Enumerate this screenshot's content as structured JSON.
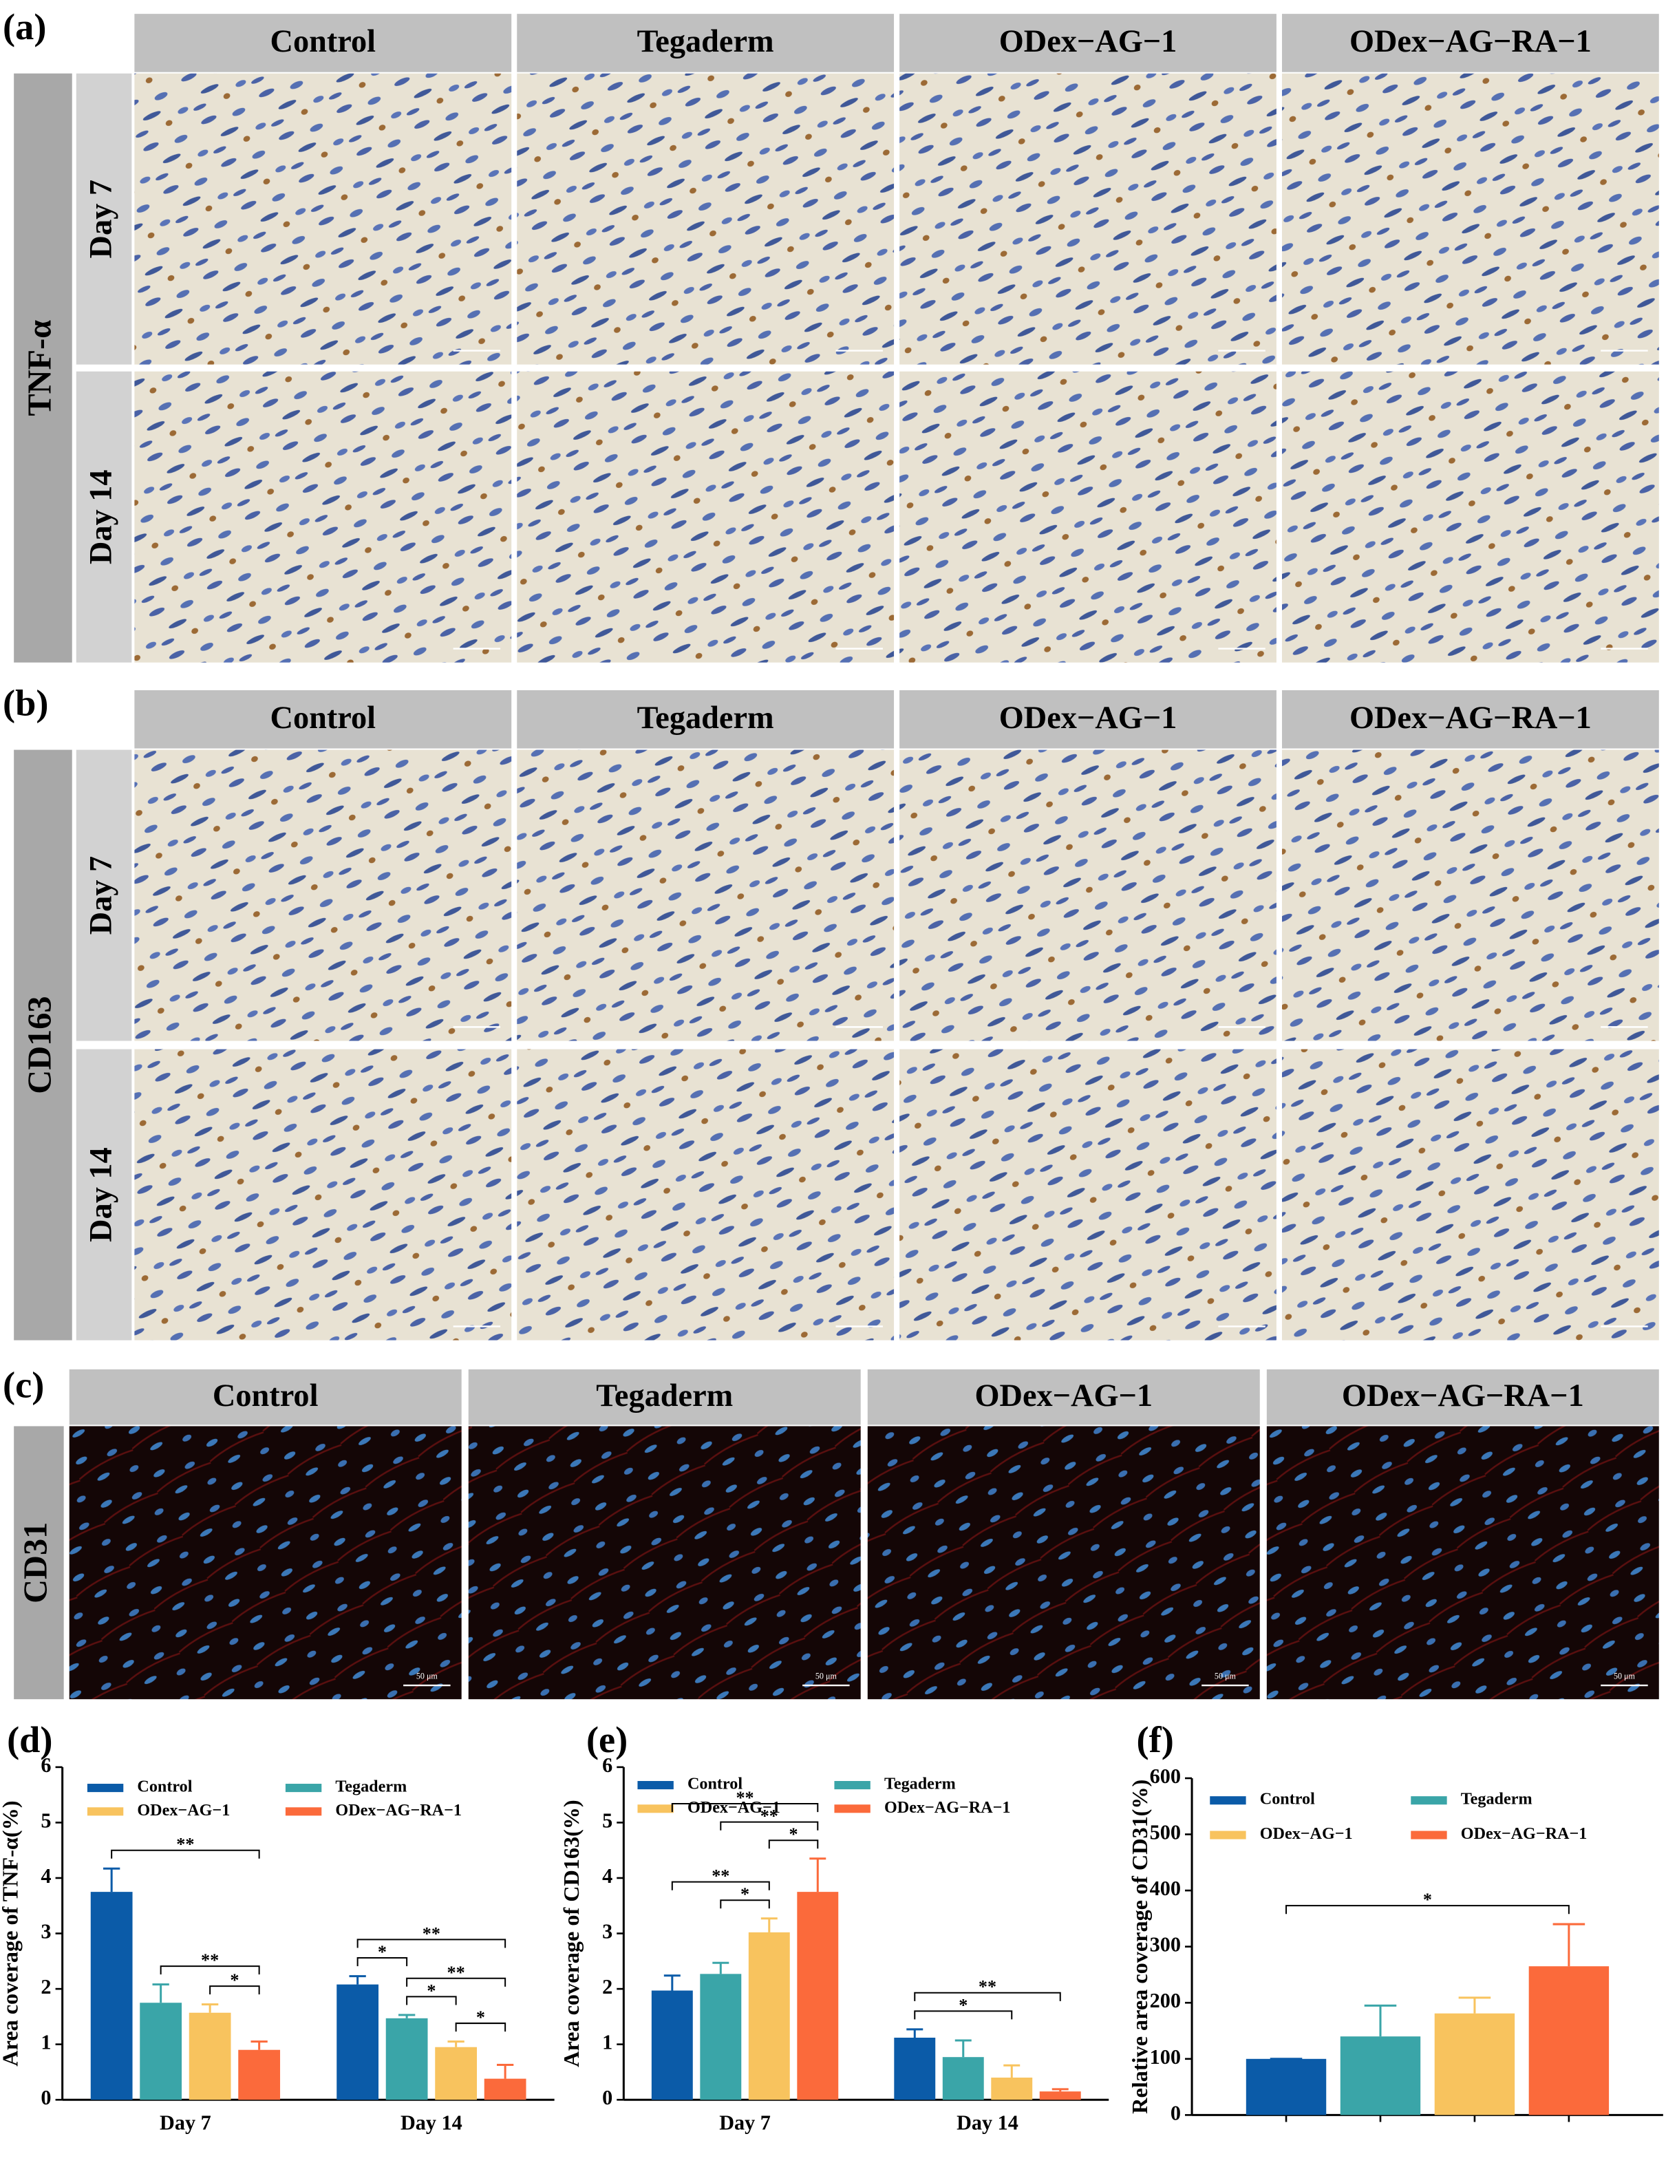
{
  "panels": [
    {
      "label": "(a)",
      "marker": "TNF-α",
      "columns": [
        "Control",
        "Tegaderm",
        "ODex−AG−1",
        "ODex−AG−RA−1"
      ],
      "rows": [
        "Day 7",
        "Day 14"
      ]
    },
    {
      "label": "(b)",
      "marker": "CD163",
      "columns": [
        "Control",
        "Tegaderm",
        "ODex−AG−1",
        "ODex−AG−RA−1"
      ],
      "rows": [
        "Day 7",
        "Day 14"
      ]
    },
    {
      "label": "(c)",
      "marker": "CD31",
      "columns": [
        "Control",
        "Tegaderm",
        "ODex−AG−1",
        "ODex−AG−RA−1"
      ],
      "scale_bar": "50 μm"
    }
  ],
  "chart_data": [
    {
      "type": "bar",
      "title": "(d)",
      "y_label": "Area coverage of TNF-α(%)",
      "categories": [
        "Day 7",
        "Day 14"
      ],
      "ylim": [
        0,
        6
      ],
      "yticks": [
        0,
        1,
        2,
        3,
        4,
        5,
        6
      ],
      "legend": "top",
      "series": [
        {
          "name": "Control",
          "color": "#0b5ba8",
          "values": [
            3.75,
            2.08
          ],
          "errors": [
            0.42,
            0.15
          ]
        },
        {
          "name": "Tegaderm",
          "color": "#3aa5a8",
          "values": [
            1.75,
            1.47
          ],
          "errors": [
            0.33,
            0.06
          ]
        },
        {
          "name": "ODex−AG−1",
          "color": "#f8c35e",
          "values": [
            1.57,
            0.95
          ],
          "errors": [
            0.15,
            0.1
          ]
        },
        {
          "name": "ODex−AG−RA−1",
          "color": "#fb6a3b",
          "values": [
            0.9,
            0.38
          ],
          "errors": [
            0.15,
            0.25
          ]
        }
      ],
      "significance": [
        {
          "label": "*",
          "category": 0,
          "from": 2,
          "to": 3
        },
        {
          "label": "**",
          "category": 0,
          "from": 1,
          "to": 3
        },
        {
          "label": "**",
          "category": 0,
          "from": 0,
          "to": 3
        },
        {
          "label": "*",
          "category": 1,
          "from": 2,
          "to": 3
        },
        {
          "label": "*",
          "category": 1,
          "from": 1,
          "to": 2
        },
        {
          "label": "**",
          "category": 1,
          "from": 1,
          "to": 3
        },
        {
          "label": "*",
          "category": 1,
          "from": 0,
          "to": 1
        },
        {
          "label": "**",
          "category": 1,
          "from": 0,
          "to": 3
        }
      ]
    },
    {
      "type": "bar",
      "title": "(e)",
      "y_label": "Area coverage of CD163(%)",
      "categories": [
        "Day 7",
        "Day 14"
      ],
      "ylim": [
        0,
        6
      ],
      "yticks": [
        0,
        1,
        2,
        3,
        4,
        5,
        6
      ],
      "legend": "top",
      "series": [
        {
          "name": "Control",
          "color": "#0b5ba8",
          "values": [
            1.97,
            1.12
          ],
          "errors": [
            0.27,
            0.15
          ]
        },
        {
          "name": "Tegaderm",
          "color": "#3aa5a8",
          "values": [
            2.27,
            0.77
          ],
          "errors": [
            0.2,
            0.3
          ]
        },
        {
          "name": "ODex−AG−1",
          "color": "#f8c35e",
          "values": [
            3.02,
            0.4
          ],
          "errors": [
            0.25,
            0.22
          ]
        },
        {
          "name": "ODex−AG−RA−1",
          "color": "#fb6a3b",
          "values": [
            3.75,
            0.15
          ],
          "errors": [
            0.6,
            0.04
          ]
        }
      ],
      "significance": [
        {
          "label": "*",
          "category": 0,
          "from": 1,
          "to": 2
        },
        {
          "label": "**",
          "category": 0,
          "from": 0,
          "to": 2
        },
        {
          "label": "*",
          "category": 0,
          "from": 2,
          "to": 3
        },
        {
          "label": "**",
          "category": 0,
          "from": 1,
          "to": 3
        },
        {
          "label": "**",
          "category": 0,
          "from": 0,
          "to": 3
        },
        {
          "label": "*",
          "category": 1,
          "from": 0,
          "to": 2
        },
        {
          "label": "**",
          "category": 1,
          "from": 0,
          "to": 3
        }
      ]
    },
    {
      "type": "bar",
      "title": "(f)",
      "y_label": "Relative area coverage of CD31(%)",
      "categories": [
        null
      ],
      "ylim": [
        0,
        600
      ],
      "yticks": [
        0,
        100,
        200,
        300,
        400,
        500,
        600
      ],
      "legend": "top",
      "series": [
        {
          "name": "Control",
          "color": "#0b5ba8",
          "values": [
            100
          ],
          "errors": [
            0
          ]
        },
        {
          "name": "Tegaderm",
          "color": "#3aa5a8",
          "values": [
            140
          ],
          "errors": [
            55
          ]
        },
        {
          "name": "ODex−AG−1",
          "color": "#f8c35e",
          "values": [
            181
          ],
          "errors": [
            28
          ]
        },
        {
          "name": "ODex−AG−RA−1",
          "color": "#fb6a3b",
          "values": [
            265
          ],
          "errors": [
            75
          ]
        }
      ],
      "significance": [
        {
          "label": "*",
          "category": 0,
          "from": 0,
          "to": 3
        }
      ]
    }
  ]
}
